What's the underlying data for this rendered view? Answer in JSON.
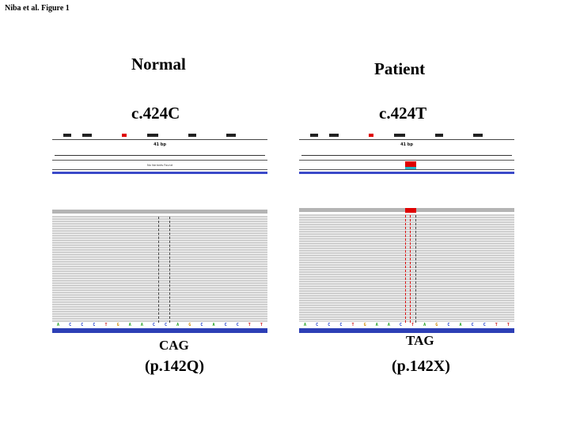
{
  "figure_label": "Niba et al. Figure 1",
  "normal": {
    "heading": "Normal",
    "variant": "c.424C",
    "codon": "CAG",
    "protein": "(p.142Q)",
    "track_text": "No Variants Found",
    "sequence": [
      "A",
      "C",
      "C",
      "C",
      "T",
      "G",
      "A",
      "A",
      "C",
      "C",
      "A",
      "G",
      "C",
      "A",
      "C",
      "C",
      "T",
      "T"
    ]
  },
  "patient": {
    "heading": "Patient",
    "variant": "c.424T",
    "codon": "TAG",
    "protein": "(p.142X)",
    "sequence": [
      "A",
      "C",
      "C",
      "C",
      "T",
      "G",
      "A",
      "A",
      "C",
      "T",
      "A",
      "G",
      "C",
      "A",
      "C",
      "C",
      "T",
      "T"
    ]
  },
  "igv": {
    "ruler_label": "41 bp",
    "colors": {
      "A": "#20a020",
      "C": "#1a3ccc",
      "G": "#d08a00",
      "T": "#d01818"
    }
  }
}
